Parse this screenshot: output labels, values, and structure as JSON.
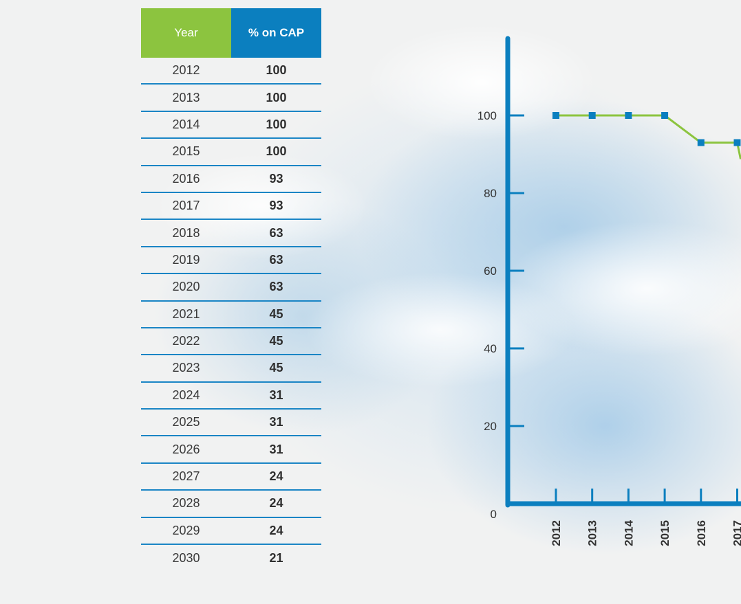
{
  "table": {
    "headers": [
      "Year",
      "% on CAP"
    ],
    "rows": [
      [
        "2012",
        "100"
      ],
      [
        "2013",
        "100"
      ],
      [
        "2014",
        "100"
      ],
      [
        "2015",
        "100"
      ],
      [
        "2016",
        "93"
      ],
      [
        "2017",
        "93"
      ],
      [
        "2018",
        "63"
      ],
      [
        "2019",
        "63"
      ],
      [
        "2020",
        "63"
      ],
      [
        "2021",
        "45"
      ],
      [
        "2022",
        "45"
      ],
      [
        "2023",
        "45"
      ],
      [
        "2024",
        "31"
      ],
      [
        "2025",
        "31"
      ],
      [
        "2026",
        "31"
      ],
      [
        "2027",
        "24"
      ],
      [
        "2028",
        "24"
      ],
      [
        "2029",
        "24"
      ],
      [
        "2030",
        "21"
      ]
    ]
  },
  "colors": {
    "year_header": "#8cc43f",
    "cap_header": "#0b7fbf",
    "axis": "#0b7fbf",
    "line": "#8cc43f",
    "marker": "#0b7fbf"
  },
  "chart_data": {
    "type": "line",
    "title": "",
    "xlabel": "",
    "ylabel": "",
    "x": [
      "2012",
      "2013",
      "2014",
      "2015",
      "2016",
      "2017"
    ],
    "series": [
      {
        "values": [
          100,
          100,
          100,
          100,
          93,
          93
        ]
      }
    ],
    "y_ticks": [
      0,
      20,
      40,
      60,
      80,
      100
    ],
    "ylim": [
      0,
      100
    ],
    "legend": "none",
    "grid": false
  }
}
